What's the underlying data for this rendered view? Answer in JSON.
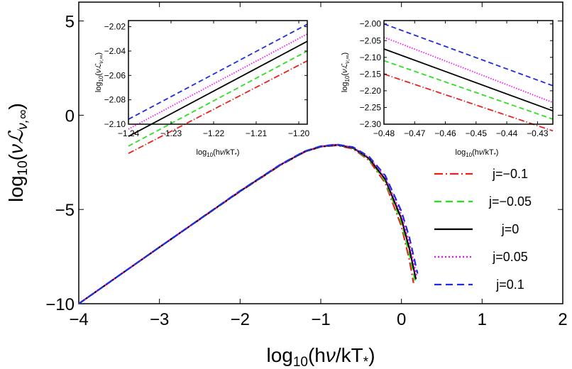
{
  "chart_data": [
    {
      "type": "line",
      "xlabel": "log₁₀(hν/kT*)",
      "ylabel": "log₁₀(νℒ_ν,∞)",
      "xlim": [
        -4,
        2
      ],
      "ylim": [
        -10,
        6
      ],
      "xticks": [
        "−4",
        "−3",
        "−2",
        "−1",
        "0",
        "1",
        "2"
      ],
      "yticks": [
        "−10",
        "−5",
        "0",
        "5"
      ],
      "legend_position": "right",
      "series": [
        {
          "name": "j=−0.1",
          "color": "#e8211c",
          "dash": "dash-dot",
          "x": [
            -4,
            -3,
            -2,
            -1.5,
            -1.2,
            -1.0,
            -0.8,
            -0.6,
            -0.4,
            -0.2,
            0.0,
            0.1,
            0.15
          ],
          "y": [
            -10.0,
            -7.0,
            -4.05,
            -2.65,
            -1.95,
            -1.68,
            -1.6,
            -1.78,
            -2.4,
            -3.6,
            -5.9,
            -7.7,
            -8.9
          ]
        },
        {
          "name": "j=−0.05",
          "color": "#2be01e",
          "dash": "dash",
          "x": [
            -4,
            -3,
            -2,
            -1.5,
            -1.2,
            -1.0,
            -0.8,
            -0.6,
            -0.4,
            -0.2,
            0.0,
            0.1,
            0.17
          ],
          "y": [
            -10.0,
            -7.0,
            -4.04,
            -2.64,
            -1.94,
            -1.67,
            -1.58,
            -1.75,
            -2.35,
            -3.5,
            -5.7,
            -7.4,
            -8.8
          ]
        },
        {
          "name": "j=0",
          "color": "#000000",
          "dash": "solid",
          "x": [
            -4,
            -3,
            -2,
            -1.5,
            -1.2,
            -1.0,
            -0.8,
            -0.6,
            -0.4,
            -0.2,
            0.0,
            0.1,
            0.18
          ],
          "y": [
            -10.0,
            -7.0,
            -4.03,
            -2.63,
            -1.93,
            -1.66,
            -1.57,
            -1.73,
            -2.3,
            -3.4,
            -5.5,
            -7.1,
            -8.7
          ]
        },
        {
          "name": "j=0.05",
          "color": "#ff00ff",
          "dash": "dot",
          "x": [
            -4,
            -3,
            -2,
            -1.5,
            -1.2,
            -1.0,
            -0.8,
            -0.6,
            -0.4,
            -0.2,
            0.0,
            0.1,
            0.19
          ],
          "y": [
            -10.0,
            -7.0,
            -4.02,
            -2.62,
            -1.92,
            -1.65,
            -1.56,
            -1.71,
            -2.25,
            -3.3,
            -5.3,
            -6.8,
            -8.6
          ]
        },
        {
          "name": "j=0.1",
          "color": "#1f2be0",
          "dash": "dash",
          "x": [
            -4,
            -3,
            -2,
            -1.5,
            -1.2,
            -1.0,
            -0.8,
            -0.6,
            -0.4,
            -0.2,
            0.0,
            0.1,
            0.2
          ],
          "y": [
            -10.0,
            -7.0,
            -4.01,
            -2.61,
            -1.91,
            -1.64,
            -1.55,
            -1.69,
            -2.2,
            -3.2,
            -5.1,
            -6.5,
            -8.4
          ]
        }
      ]
    },
    {
      "type": "line",
      "xlabel": "log₁₀(hν/kT*)",
      "ylabel": "log₁₀(νℒ_ν,∞)",
      "xlim": [
        -1.24,
        -1.198
      ],
      "ylim": [
        -2.1,
        -2.015
      ],
      "xticks": [
        "−1.24",
        "−1.23",
        "−1.22",
        "−1.21",
        "−1.20"
      ],
      "yticks": [
        "−2.10",
        "−2.08",
        "−2.06",
        "−2.04",
        "−2.02"
      ],
      "series": [
        {
          "name": "j=−0.1",
          "color": "#e8211c",
          "dash": "dash-dot",
          "x": [
            -1.24,
            -1.198
          ],
          "y": [
            -2.124,
            -2.048
          ]
        },
        {
          "name": "j=−0.05",
          "color": "#2be01e",
          "dash": "dash",
          "x": [
            -1.24,
            -1.198
          ],
          "y": [
            -2.118,
            -2.04
          ]
        },
        {
          "name": "j=0",
          "color": "#000000",
          "dash": "solid",
          "x": [
            -1.24,
            -1.198
          ],
          "y": [
            -2.11,
            -2.032
          ]
        },
        {
          "name": "j=0.05",
          "color": "#ff00ff",
          "dash": "dot",
          "x": [
            -1.24,
            -1.198
          ],
          "y": [
            -2.104,
            -2.026
          ]
        },
        {
          "name": "j=0.1",
          "color": "#1f2be0",
          "dash": "dash",
          "x": [
            -1.24,
            -1.198
          ],
          "y": [
            -2.096,
            -2.018
          ]
        }
      ]
    },
    {
      "type": "line",
      "xlabel": "log₁₀(hν/kT*)",
      "ylabel": "log₁₀(νℒ_ν,∞)",
      "xlim": [
        -0.48,
        -0.425
      ],
      "ylim": [
        -2.3,
        -1.99
      ],
      "xticks": [
        "−0.48",
        "−0.47",
        "−0.46",
        "−0.45",
        "−0.44",
        "−0.43"
      ],
      "yticks": [
        "−2.30",
        "−2.25",
        "−2.20",
        "−2.15",
        "−2.10",
        "−2.05",
        "−2.00"
      ],
      "series": [
        {
          "name": "j=−0.1",
          "color": "#e8211c",
          "dash": "dash-dot",
          "x": [
            -0.48,
            -0.425
          ],
          "y": [
            -2.15,
            -2.32
          ]
        },
        {
          "name": "j=−0.05",
          "color": "#2be01e",
          "dash": "dash",
          "x": [
            -0.48,
            -0.425
          ],
          "y": [
            -2.11,
            -2.285
          ]
        },
        {
          "name": "j=0",
          "color": "#000000",
          "dash": "solid",
          "x": [
            -0.48,
            -0.425
          ],
          "y": [
            -2.075,
            -2.26
          ]
        },
        {
          "name": "j=0.05",
          "color": "#ff00ff",
          "dash": "dot",
          "x": [
            -0.48,
            -0.425
          ],
          "y": [
            -2.04,
            -2.235
          ]
        },
        {
          "name": "j=0.1",
          "color": "#1f2be0",
          "dash": "dash",
          "x": [
            -0.48,
            -0.425
          ],
          "y": [
            -2.0,
            -2.185
          ]
        }
      ]
    }
  ],
  "legend": {
    "entries": [
      "j=−0.1",
      "j=−0.05",
      "j=0",
      "j=0.05",
      "j=0.1"
    ]
  }
}
